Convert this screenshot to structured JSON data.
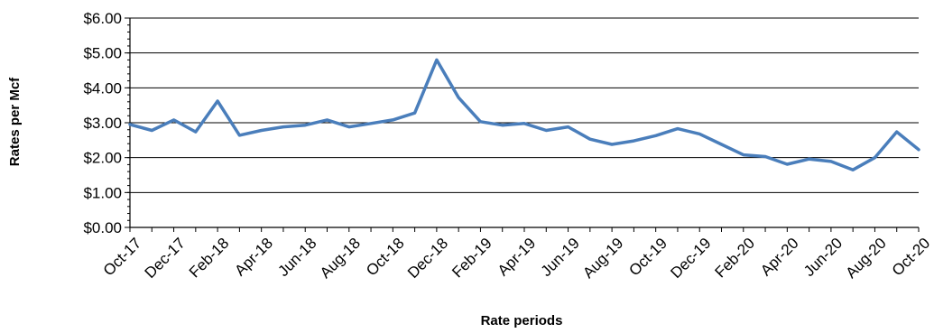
{
  "chart_data": {
    "type": "line",
    "title": "",
    "xlabel": "Rate periods",
    "ylabel": "Rates per Mcf",
    "ylim": [
      0,
      6
    ],
    "y_ticks": [
      0,
      1,
      2,
      3,
      4,
      5,
      6
    ],
    "y_tick_labels": [
      "$0.00",
      "$1.00",
      "$2.00",
      "$3.00",
      "$4.00",
      "$5.00",
      "$6.00"
    ],
    "grid": "horizontal major gridlines",
    "legend": "none",
    "line_color": "#4a7ebb",
    "x": [
      "Oct-17",
      "Nov-17",
      "Dec-17",
      "Jan-18",
      "Feb-18",
      "Mar-18",
      "Apr-18",
      "May-18",
      "Jun-18",
      "Jul-18",
      "Aug-18",
      "Sep-18",
      "Oct-18",
      "Nov-18",
      "Dec-18",
      "Jan-19",
      "Feb-19",
      "Mar-19",
      "Apr-19",
      "May-19",
      "Jun-19",
      "Jul-19",
      "Aug-19",
      "Sep-19",
      "Oct-19",
      "Nov-19",
      "Dec-19",
      "Jan-20",
      "Feb-20",
      "Mar-20",
      "Apr-20",
      "May-20",
      "Jun-20",
      "Jul-20",
      "Aug-20",
      "Sep-20",
      "Oct-20"
    ],
    "x_tick_labels": [
      "Oct-17",
      "Dec-17",
      "Feb-18",
      "Apr-18",
      "Jun-18",
      "Aug-18",
      "Oct-18",
      "Dec-18",
      "Feb-19",
      "Apr-19",
      "Jun-19",
      "Aug-19",
      "Oct-19",
      "Dec-19",
      "Feb-20",
      "Apr-20",
      "Jun-20",
      "Aug-20",
      "Oct-20"
    ],
    "series": [
      {
        "values": [
          2.95,
          2.78,
          3.08,
          2.74,
          3.62,
          2.64,
          2.78,
          2.88,
          2.93,
          3.08,
          2.88,
          2.98,
          3.08,
          3.28,
          4.8,
          3.72,
          3.03,
          2.93,
          2.98,
          2.78,
          2.88,
          2.53,
          2.38,
          2.48,
          2.63,
          2.83,
          2.68,
          2.38,
          2.08,
          2.03,
          1.81,
          1.96,
          1.89,
          1.65,
          2.0,
          2.74,
          2.23
        ]
      }
    ]
  }
}
